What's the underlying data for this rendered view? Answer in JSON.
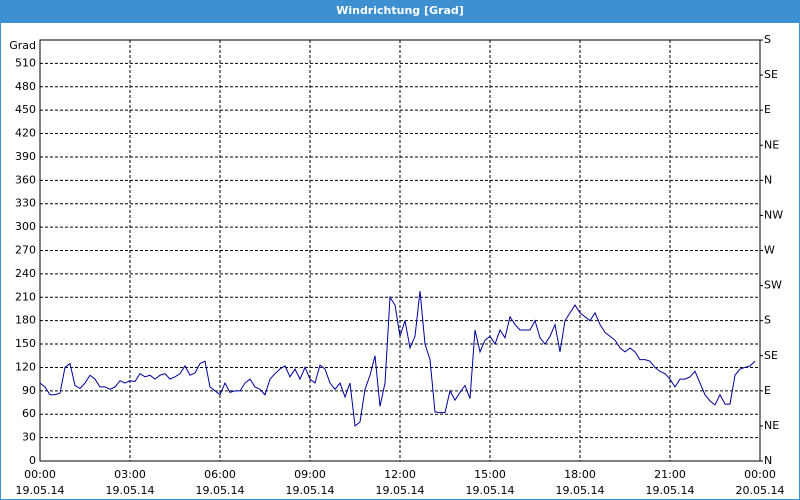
{
  "chart_data": {
    "type": "line",
    "title": "Windrichtung [Grad]",
    "y_label": "Grad",
    "grid": true,
    "x": [
      0,
      10,
      20,
      30,
      40,
      50,
      60,
      70,
      80,
      90,
      100,
      110,
      120,
      130,
      140,
      150,
      160,
      170,
      180,
      190,
      200,
      210,
      220,
      230,
      240,
      250,
      260,
      270,
      280,
      290,
      300,
      310,
      320,
      330,
      340,
      350,
      360,
      370,
      380,
      390,
      400,
      410,
      420,
      430,
      440,
      450,
      460,
      470,
      480,
      490,
      500,
      510,
      520,
      530,
      540,
      550,
      560,
      570,
      580,
      590,
      600,
      610,
      620,
      630,
      640,
      650,
      660,
      670,
      680,
      690,
      700,
      710,
      720,
      730,
      740,
      750,
      760,
      770,
      780,
      790,
      800,
      810,
      820,
      830,
      840,
      850,
      860,
      870,
      880,
      890,
      900,
      910,
      920,
      930,
      940,
      950,
      960,
      970,
      980,
      990,
      1000,
      1010,
      1020,
      1030,
      1040,
      1050,
      1060,
      1070,
      1080,
      1090,
      1100,
      1110,
      1120,
      1130,
      1140,
      1150,
      1160,
      1170,
      1180,
      1190,
      1200,
      1210,
      1220,
      1230,
      1240,
      1250,
      1260,
      1270,
      1280,
      1290,
      1300,
      1310,
      1320,
      1330,
      1340,
      1350,
      1360,
      1370,
      1380,
      1390,
      1400,
      1410,
      1420,
      1430
    ],
    "series": [
      {
        "color": "#0000a0",
        "values": [
          100,
          95,
          85,
          85,
          87,
          120,
          125,
          97,
          93,
          100,
          110,
          105,
          95,
          95,
          92,
          95,
          103,
          100,
          103,
          102,
          112,
          108,
          110,
          105,
          110,
          112,
          105,
          108,
          112,
          122,
          110,
          113,
          125,
          128,
          95,
          90,
          85,
          100,
          88,
          90,
          90,
          100,
          105,
          95,
          92,
          85,
          105,
          112,
          118,
          122,
          108,
          118,
          105,
          120,
          105,
          100,
          123,
          118,
          100,
          92,
          100,
          82,
          100,
          45,
          50,
          92,
          110,
          135,
          70,
          100,
          210,
          200,
          160,
          180,
          145,
          160,
          218,
          150,
          130,
          63,
          62,
          62,
          90,
          78,
          88,
          97,
          80,
          168,
          140,
          155,
          160,
          150,
          168,
          158,
          185,
          175,
          168,
          168,
          168,
          180,
          158,
          150,
          160,
          175,
          140,
          180,
          190,
          200,
          190,
          185,
          180,
          190,
          175,
          165,
          160,
          155,
          145,
          140,
          145,
          140,
          130,
          130,
          128,
          120,
          115,
          112,
          105,
          95,
          105,
          105,
          108,
          115,
          100,
          85,
          77,
          72,
          85,
          73,
          73,
          110,
          118,
          120,
          122,
          128
        ]
      }
    ],
    "xlim": [
      0,
      1440
    ],
    "xticks": [
      {
        "value": 0,
        "label": "00:00\n19.05.14"
      },
      {
        "value": 180,
        "label": "03:00\n19.05.14"
      },
      {
        "value": 360,
        "label": "06:00\n19.05.14"
      },
      {
        "value": 540,
        "label": "09:00\n19.05.14"
      },
      {
        "value": 720,
        "label": "12:00\n19.05.14"
      },
      {
        "value": 900,
        "label": "15:00\n19.05.14"
      },
      {
        "value": 1080,
        "label": "18:00\n19.05.14"
      },
      {
        "value": 1260,
        "label": "21:00\n19.05.14"
      },
      {
        "value": 1440,
        "label": "00:00\n20.05.14"
      }
    ],
    "ylim": [
      0,
      540
    ],
    "yticks": [
      0,
      30,
      60,
      90,
      120,
      150,
      180,
      210,
      240,
      270,
      300,
      330,
      360,
      390,
      420,
      450,
      480,
      510
    ],
    "y2lim": [
      0,
      540
    ],
    "y2ticks": [
      {
        "value": 0,
        "label": "N"
      },
      {
        "value": 45,
        "label": "NE"
      },
      {
        "value": 90,
        "label": "E"
      },
      {
        "value": 135,
        "label": "SE"
      },
      {
        "value": 180,
        "label": "S"
      },
      {
        "value": 225,
        "label": "SW"
      },
      {
        "value": 270,
        "label": "W"
      },
      {
        "value": 315,
        "label": "NW"
      },
      {
        "value": 360,
        "label": "N"
      },
      {
        "value": 405,
        "label": "NE"
      },
      {
        "value": 450,
        "label": "E"
      },
      {
        "value": 495,
        "label": "SE"
      },
      {
        "value": 540,
        "label": "S"
      }
    ]
  }
}
